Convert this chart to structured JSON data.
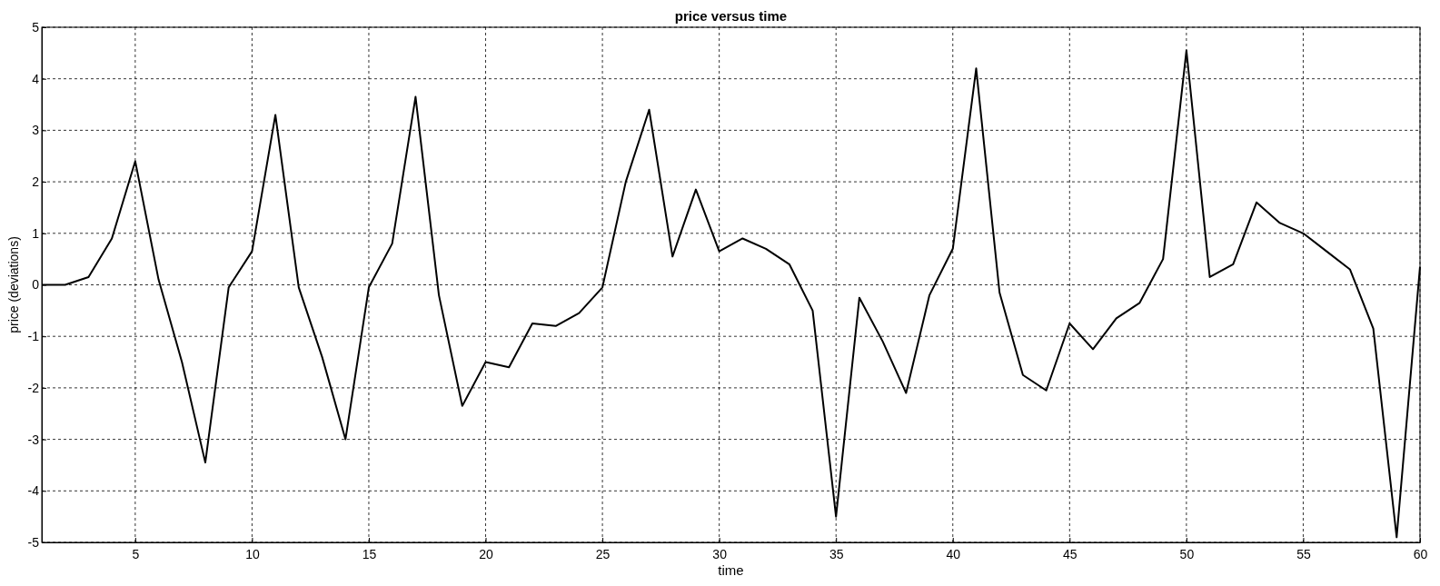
{
  "chart_data": {
    "type": "line",
    "title": "price versus time",
    "xlabel": "time",
    "ylabel": "price (deviations)",
    "x": [
      1,
      2,
      3,
      4,
      5,
      6,
      7,
      8,
      9,
      10,
      11,
      12,
      13,
      14,
      15,
      16,
      17,
      18,
      19,
      20,
      21,
      22,
      23,
      24,
      25,
      26,
      27,
      28,
      29,
      30,
      31,
      32,
      33,
      34,
      35,
      36,
      37,
      38,
      39,
      40,
      41,
      42,
      43,
      44,
      45,
      46,
      47,
      48,
      49,
      50,
      51,
      52,
      53,
      54,
      55,
      56,
      57,
      58,
      59,
      60
    ],
    "series": [
      {
        "color": "#000000",
        "values": [
          0,
          0,
          0.15,
          0.9,
          2.4,
          0.1,
          -1.5,
          -3.45,
          -0.05,
          0.65,
          3.3,
          -0.05,
          -1.4,
          -3.0,
          -0.05,
          0.8,
          3.65,
          -0.2,
          -2.35,
          -1.5,
          -1.6,
          -0.75,
          -0.8,
          -0.55,
          -0.05,
          2.0,
          3.4,
          0.55,
          1.85,
          0.65,
          0.9,
          0.7,
          0.4,
          -0.5,
          -4.5,
          -0.25,
          -1.1,
          -2.1,
          -0.2,
          0.7,
          4.2,
          -0.15,
          -1.75,
          -2.05,
          -0.75,
          -1.25,
          -0.65,
          -0.35,
          0.5,
          4.55,
          0.15,
          0.4,
          1.6,
          1.2,
          1.0,
          0.65,
          0.3,
          -0.85,
          -4.9,
          0.35
        ]
      }
    ],
    "xlim": [
      1,
      60
    ],
    "xticks": [
      5,
      10,
      15,
      20,
      25,
      30,
      35,
      40,
      45,
      50,
      55,
      60
    ],
    "ylim": [
      -5,
      5
    ],
    "yticks": [
      -5,
      -4,
      -3,
      -2,
      -1,
      0,
      1,
      2,
      3,
      4,
      5
    ],
    "grid": true,
    "marker": "none",
    "line_style": "solid"
  }
}
